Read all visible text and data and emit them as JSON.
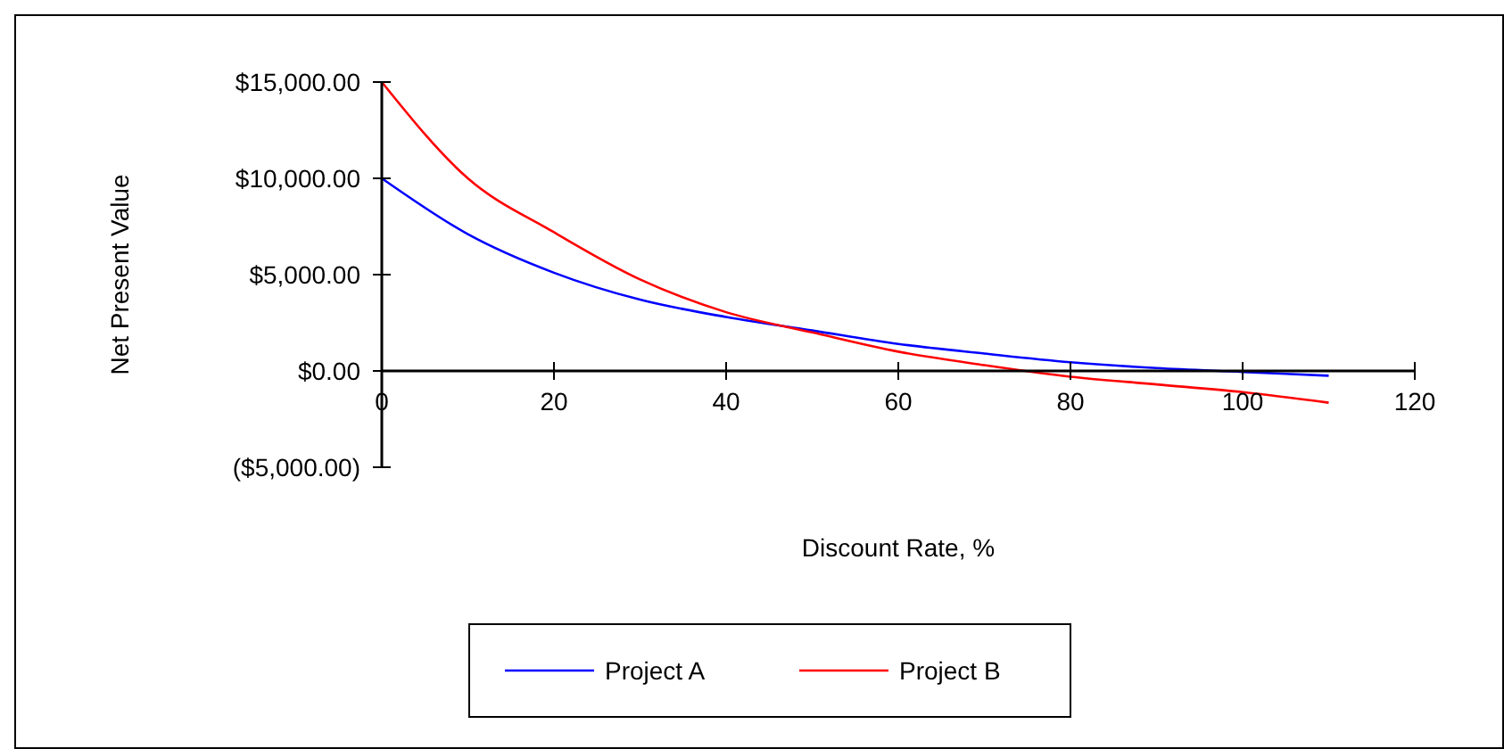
{
  "chart_data": {
    "type": "line",
    "xlabel": "Discount Rate, %",
    "ylabel": "Net Present Value",
    "x": [
      0,
      10,
      20,
      30,
      40,
      50,
      60,
      70,
      80,
      90,
      100,
      110
    ],
    "series": [
      {
        "name": "Project A",
        "color": "#0000ff",
        "values": [
          10000,
          7100,
          5100,
          3700,
          2800,
          2100,
          1400,
          900,
          450,
          150,
          -50,
          -250
        ]
      },
      {
        "name": "Project B",
        "color": "#ff0000",
        "values": [
          15000,
          10000,
          7200,
          4750,
          3050,
          2000,
          1000,
          300,
          -300,
          -700,
          -1100,
          -1650
        ]
      }
    ],
    "xlim": [
      0,
      120
    ],
    "xticks": [
      0,
      20,
      40,
      60,
      80,
      100,
      120
    ],
    "ylim": [
      -5000,
      15000
    ],
    "yticks": [
      {
        "value": -5000,
        "label": "($5,000.00)"
      },
      {
        "value": 0,
        "label": "$0.00"
      },
      {
        "value": 5000,
        "label": "$5,000.00"
      },
      {
        "value": 10000,
        "label": "$10,000.00"
      },
      {
        "value": 15000,
        "label": "$15,000.00"
      }
    ],
    "grid": false,
    "legend": "bottom",
    "marker": "none",
    "line_style": "solid"
  }
}
